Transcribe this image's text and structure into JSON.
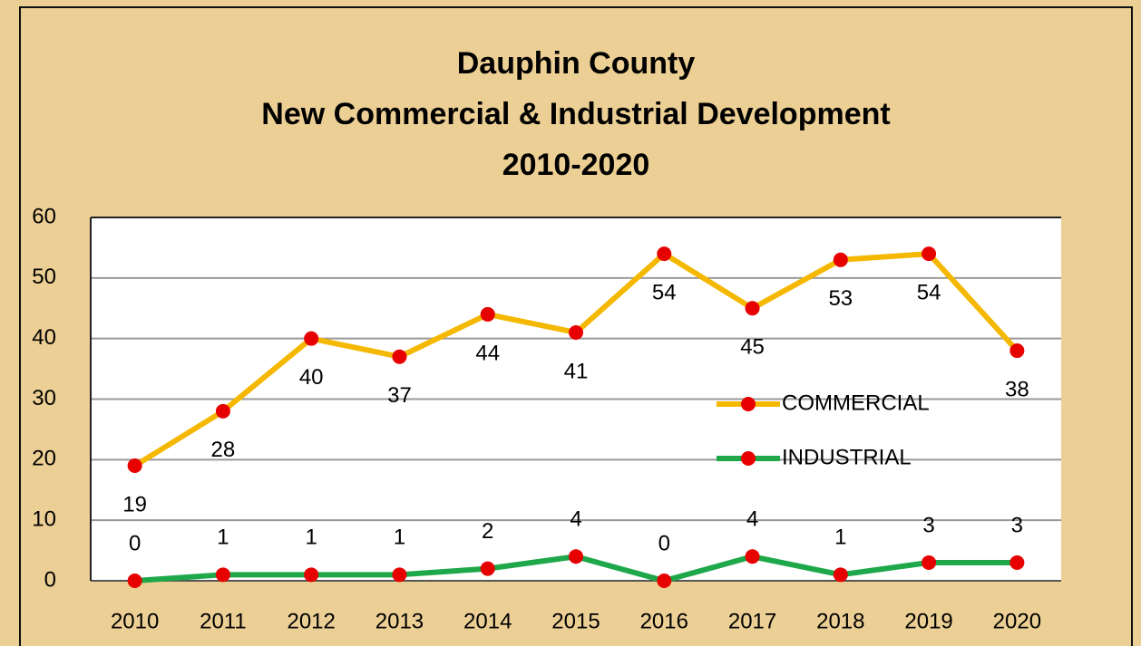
{
  "chart_data": {
    "type": "line",
    "title": [
      "Dauphin County",
      "New Commercial & Industrial Development",
      "2010-2020"
    ],
    "categories": [
      "2010",
      "2011",
      "2012",
      "2013",
      "2014",
      "2015",
      "2016",
      "2017",
      "2018",
      "2019",
      "2020"
    ],
    "series": [
      {
        "name": "COMMERCIAL",
        "color": "#f5b800",
        "marker_color": "#e60000",
        "values": [
          19,
          28,
          40,
          37,
          44,
          41,
          54,
          45,
          53,
          54,
          38
        ]
      },
      {
        "name": "INDUSTRIAL",
        "color": "#1ea84a",
        "marker_color": "#e60000",
        "values": [
          0,
          1,
          1,
          1,
          2,
          4,
          0,
          4,
          1,
          3,
          3
        ]
      }
    ],
    "ylim": [
      0,
      60
    ],
    "yticks": [
      0,
      10,
      20,
      30,
      40,
      50,
      60
    ],
    "grid": true,
    "legend": "right"
  }
}
